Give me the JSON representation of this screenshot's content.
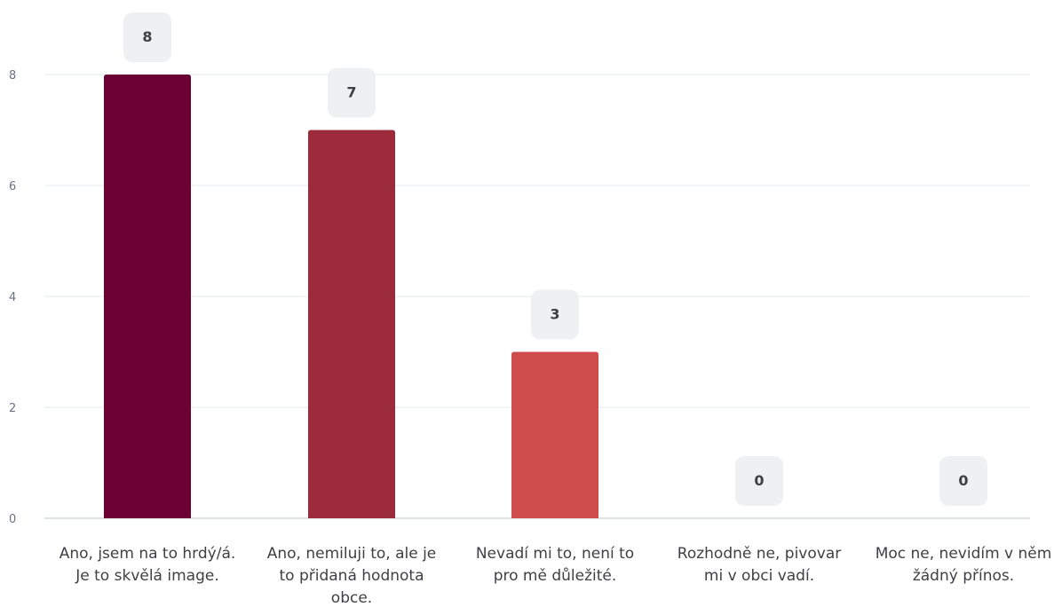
{
  "chart_data": {
    "type": "bar",
    "categories": [
      "Ano, jsem na to hrdý/á. Je to skvělá image.",
      "Ano, nemiluji to, ale je to přidaná hodnota obce.",
      "Nevadí mi to, není to pro mě důležité.",
      "Rozhodně ne, pivovar mi v obci vadí.",
      "Moc ne, nevidím v něm žádný přínos."
    ],
    "values": [
      8,
      7,
      3,
      0,
      0
    ],
    "data_labels": [
      "8",
      "7",
      "3",
      "0",
      "0"
    ],
    "y_ticks": [
      0,
      2,
      4,
      6,
      8
    ],
    "ylim": [
      0,
      8
    ],
    "grid": true,
    "colors": [
      "#6b0033",
      "#9b2b3a",
      "#cf4c4c",
      "#e98080",
      "#f3b0a8"
    ],
    "title": "",
    "xlabel": "",
    "ylabel": ""
  }
}
